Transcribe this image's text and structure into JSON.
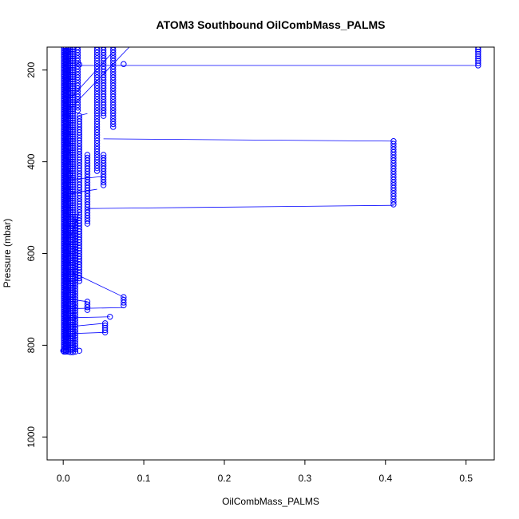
{
  "chart_data": {
    "type": "scatter",
    "title": "ATOM3 Southbound OilCombMass_PALMS",
    "xlabel": "OilCombMass_PALMS",
    "ylabel": "Pressure (mbar)",
    "xlim": [
      -0.02,
      0.535
    ],
    "ylim": [
      1050,
      150
    ],
    "y_reversed": true,
    "x_ticks": [
      0.0,
      0.1,
      0.2,
      0.3,
      0.4,
      0.5
    ],
    "x_tick_labels": [
      "0.0",
      "0.1",
      "0.2",
      "0.3",
      "0.4",
      "0.5"
    ],
    "y_ticks": [
      200,
      400,
      600,
      800,
      1000
    ],
    "y_tick_labels": [
      "200",
      "400",
      "600",
      "800",
      "1000"
    ],
    "grid": false,
    "legend": "none",
    "series_color": "#0000ff",
    "marker": "open-circle",
    "columns": [
      {
        "x": 0.515,
        "ymin": 150,
        "ymax": 190,
        "step": 5
      },
      {
        "x": 0.41,
        "ymin": 355,
        "ymax": 495,
        "step": 6
      },
      {
        "x": 0.075,
        "ymin": 695,
        "ymax": 718,
        "step": 6
      },
      {
        "x": 0.062,
        "ymin": 150,
        "ymax": 325,
        "step": 6
      },
      {
        "x": 0.052,
        "ymin": 752,
        "ymax": 772,
        "step": 5
      },
      {
        "x": 0.05,
        "ymin": 385,
        "ymax": 455,
        "step": 6
      },
      {
        "x": 0.05,
        "ymin": 150,
        "ymax": 300,
        "step": 6
      },
      {
        "x": 0.042,
        "ymin": 150,
        "ymax": 425,
        "step": 6
      },
      {
        "x": 0.03,
        "ymin": 385,
        "ymax": 540,
        "step": 6
      },
      {
        "x": 0.03,
        "ymin": 705,
        "ymax": 728,
        "step": 6
      },
      {
        "x": 0.02,
        "ymin": 300,
        "ymax": 660,
        "step": 6
      },
      {
        "x": 0.018,
        "ymin": 150,
        "ymax": 290,
        "step": 6
      },
      {
        "x": 0.015,
        "ymin": 520,
        "ymax": 815,
        "step": 6
      },
      {
        "x": 0.012,
        "ymin": 150,
        "ymax": 815,
        "step": 5
      },
      {
        "x": 0.009,
        "ymin": 150,
        "ymax": 815,
        "step": 5
      },
      {
        "x": 0.006,
        "ymin": 150,
        "ymax": 815,
        "step": 4
      },
      {
        "x": 0.003,
        "ymin": 150,
        "ymax": 815,
        "step": 4
      },
      {
        "x": 0.001,
        "ymin": 150,
        "ymax": 815,
        "step": 4
      }
    ],
    "points": [
      {
        "x": 0.075,
        "y": 187
      },
      {
        "x": 0.058,
        "y": 738
      },
      {
        "x": 0.02,
        "y": 812
      },
      {
        "x": 0.015,
        "y": 808
      },
      {
        "x": 0.008,
        "y": 428
      },
      {
        "x": 0.02,
        "y": 188
      },
      {
        "x": 0.0,
        "y": 812
      },
      {
        "x": 0.004,
        "y": 812
      },
      {
        "x": 0.03,
        "y": 717
      }
    ],
    "segments": [
      {
        "x1": 0.0,
        "y1": 190,
        "x2": 0.515,
        "y2": 190
      },
      {
        "x1": 0.05,
        "y1": 350,
        "x2": 0.41,
        "y2": 355
      },
      {
        "x1": 0.03,
        "y1": 502,
        "x2": 0.41,
        "y2": 495
      },
      {
        "x1": 0.01,
        "y1": 640,
        "x2": 0.075,
        "y2": 695
      },
      {
        "x1": 0.012,
        "y1": 720,
        "x2": 0.075,
        "y2": 718
      },
      {
        "x1": 0.005,
        "y1": 740,
        "x2": 0.058,
        "y2": 738
      },
      {
        "x1": 0.005,
        "y1": 760,
        "x2": 0.052,
        "y2": 752
      },
      {
        "x1": 0.005,
        "y1": 775,
        "x2": 0.052,
        "y2": 772
      },
      {
        "x1": 0.01,
        "y1": 700,
        "x2": 0.03,
        "y2": 705
      },
      {
        "x1": 0.0,
        "y1": 440,
        "x2": 0.05,
        "y2": 432
      },
      {
        "x1": 0.005,
        "y1": 470,
        "x2": 0.042,
        "y2": 460
      },
      {
        "x1": 0.0,
        "y1": 300,
        "x2": 0.082,
        "y2": 150
      },
      {
        "x1": 0.01,
        "y1": 260,
        "x2": 0.062,
        "y2": 160
      },
      {
        "x1": 0.018,
        "y1": 300,
        "x2": 0.03,
        "y2": 295
      },
      {
        "x1": 0.01,
        "y1": 560,
        "x2": 0.02,
        "y2": 510
      },
      {
        "x1": 0.0,
        "y1": 410,
        "x2": 0.01,
        "y2": 150
      }
    ]
  }
}
